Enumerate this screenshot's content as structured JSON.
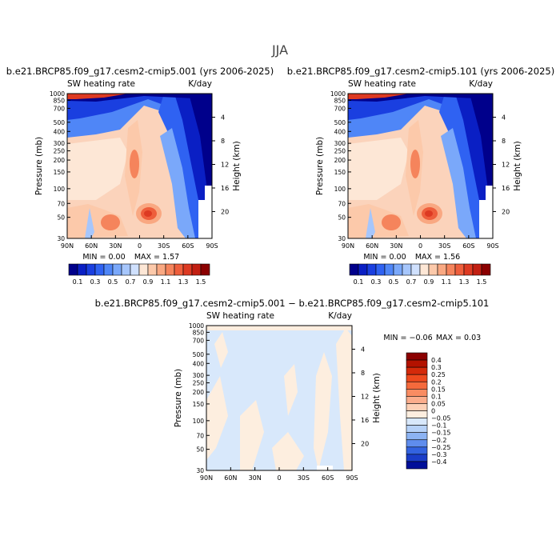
{
  "figure_title": "JJA",
  "chart_data": [
    {
      "type": "heatmap",
      "title": "b.e21.BRCP85.f09_g17.cesm2-cmip5.001 (yrs 2006-2025)",
      "left_label": "SW heating rate",
      "right_label": "K/day",
      "xlabel": "",
      "ylabel": "Pressure (mb)",
      "y2label": "Height (km)",
      "x_ticks": [
        "90N",
        "60N",
        "30N",
        "0",
        "30S",
        "60S",
        "90S"
      ],
      "y_ticks": [
        "1000",
        "850",
        "700",
        "500",
        "400",
        "300",
        "250",
        "200",
        "150",
        "100",
        "70",
        "50",
        "30"
      ],
      "y2_ticks": [
        "20",
        "16",
        "12",
        "8",
        "4"
      ],
      "min_text": "MIN =    0.00",
      "max_text": "MAX =    1.57",
      "min": 0.0,
      "max": 1.57
    },
    {
      "type": "heatmap",
      "title": "b.e21.BRCP85.f09_g17.cesm2-cmip5.101 (yrs 2006-2025)",
      "left_label": "SW heating rate",
      "right_label": "K/day",
      "xlabel": "",
      "ylabel": "Pressure (mb)",
      "y2label": "Height (km)",
      "x_ticks": [
        "90N",
        "60N",
        "30N",
        "0",
        "30S",
        "60S",
        "90S"
      ],
      "y_ticks": [
        "1000",
        "850",
        "700",
        "500",
        "400",
        "300",
        "250",
        "200",
        "150",
        "100",
        "70",
        "50",
        "30"
      ],
      "y2_ticks": [
        "20",
        "16",
        "12",
        "8",
        "4"
      ],
      "min_text": "MIN =    0.00",
      "max_text": "MAX =    1.56",
      "min": 0.0,
      "max": 1.56
    },
    {
      "type": "heatmap",
      "title": "b.e21.BRCP85.f09_g17.cesm2-cmip5.001 − b.e21.BRCP85.f09_g17.cesm2-cmip5.101",
      "left_label": "SW heating rate",
      "right_label": "K/day",
      "xlabel": "",
      "ylabel": "Pressure (mb)",
      "y2label": "Height (km)",
      "x_ticks": [
        "90N",
        "60N",
        "30N",
        "0",
        "30S",
        "60S",
        "90S"
      ],
      "y_ticks": [
        "1000",
        "850",
        "700",
        "500",
        "400",
        "300",
        "250",
        "200",
        "150",
        "100",
        "70",
        "50",
        "30"
      ],
      "y2_ticks": [
        "20",
        "16",
        "12",
        "8",
        "4"
      ],
      "min_text": "MIN =  −0.06",
      "max_text": "MAX =    0.03",
      "min": -0.06,
      "max": 0.03
    }
  ],
  "colorbar_top": {
    "labels": [
      "0.1",
      "0.3",
      "0.5",
      "0.7",
      "0.9",
      "1.1",
      "1.3",
      "1.5"
    ],
    "colors": [
      "#00008b",
      "#0a1fc4",
      "#1a3fe0",
      "#2f62f2",
      "#4f86f7",
      "#7aa8fa",
      "#a6c6fc",
      "#cfe0fd",
      "#fde7d6",
      "#fcc9aa",
      "#f9a882",
      "#f5845c",
      "#ee5e3c",
      "#dd3a22",
      "#c21f12",
      "#8b0000"
    ]
  },
  "colorbar_diff": {
    "labels": [
      "0.4",
      "0.3",
      "0.25",
      "0.2",
      "0.15",
      "0.1",
      "0.05",
      "0",
      "−0.05",
      "−0.1",
      "−0.15",
      "−0.2",
      "−0.25",
      "−0.3",
      "−0.4"
    ],
    "colors": [
      "#8b0000",
      "#b31200",
      "#d42a0a",
      "#ee4a1e",
      "#f56a3c",
      "#f98c62",
      "#fbad8c",
      "#fdd0b6",
      "#fdeedf",
      "#d8e8fb",
      "#b6d1f8",
      "#8cb3f3",
      "#5f8ded",
      "#3363e0",
      "#1a3dc8",
      "#000f99"
    ]
  }
}
